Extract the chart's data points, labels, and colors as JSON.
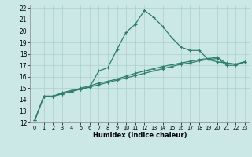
{
  "xlabel": "Humidex (Indice chaleur)",
  "background_color": "#cce8e6",
  "grid_color": "#aacfcd",
  "line_color": "#2e7d6e",
  "xlim": [
    -0.5,
    23.5
  ],
  "ylim": [
    12,
    22.3
  ],
  "yticks": [
    12,
    13,
    14,
    15,
    16,
    17,
    18,
    19,
    20,
    21,
    22
  ],
  "xticks": [
    0,
    1,
    2,
    3,
    4,
    5,
    6,
    7,
    8,
    9,
    10,
    11,
    12,
    13,
    14,
    15,
    16,
    17,
    18,
    19,
    20,
    21,
    22,
    23
  ],
  "line1_x": [
    0,
    1,
    2,
    3,
    4,
    5,
    6,
    7,
    8,
    9,
    10,
    11,
    12,
    13,
    14,
    15,
    16,
    17,
    18,
    19,
    20,
    21,
    22,
    23
  ],
  "line1_y": [
    12.2,
    14.3,
    14.3,
    14.6,
    14.8,
    14.9,
    15.1,
    16.5,
    16.8,
    18.4,
    19.9,
    20.6,
    21.8,
    21.2,
    20.4,
    19.4,
    18.6,
    18.3,
    18.3,
    17.5,
    17.3,
    17.2,
    17.1,
    17.3
  ],
  "line2_x": [
    0,
    1,
    2,
    3,
    4,
    5,
    6,
    7,
    8,
    9,
    10,
    11,
    12,
    13,
    14,
    15,
    16,
    17,
    18,
    19,
    20,
    21,
    22,
    23
  ],
  "line2_y": [
    12.2,
    14.3,
    14.3,
    14.5,
    14.7,
    15.0,
    15.2,
    15.45,
    15.6,
    15.8,
    16.05,
    16.3,
    16.5,
    16.7,
    16.9,
    17.05,
    17.2,
    17.35,
    17.5,
    17.6,
    17.7,
    17.15,
    17.1,
    17.3
  ],
  "line3_x": [
    0,
    1,
    2,
    3,
    4,
    5,
    6,
    7,
    8,
    9,
    10,
    11,
    12,
    13,
    14,
    15,
    16,
    17,
    18,
    19,
    20,
    21,
    22,
    23
  ],
  "line3_y": [
    12.2,
    14.3,
    14.3,
    14.5,
    14.7,
    14.9,
    15.1,
    15.3,
    15.5,
    15.7,
    15.9,
    16.1,
    16.3,
    16.5,
    16.7,
    16.9,
    17.1,
    17.2,
    17.4,
    17.5,
    17.6,
    17.0,
    17.0,
    17.3
  ]
}
